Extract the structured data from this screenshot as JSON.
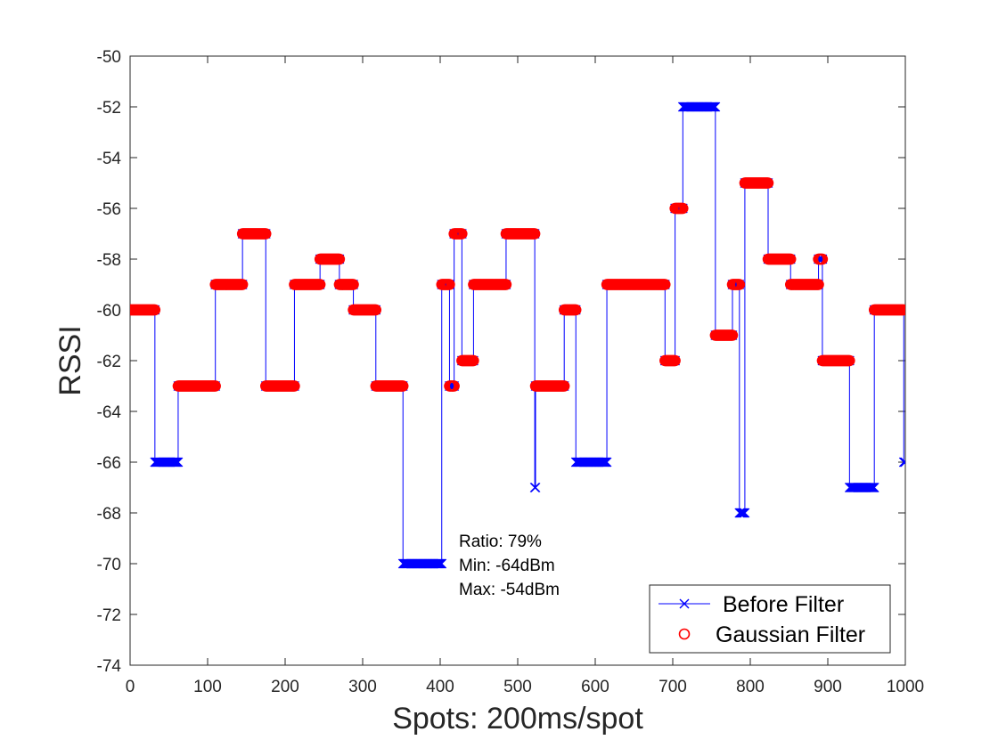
{
  "chart_data": {
    "type": "line",
    "title": "",
    "xlabel": "Spots: 200ms/spot",
    "ylabel": "RSSI",
    "xlim": [
      0,
      1000
    ],
    "ylim": [
      -74,
      -50
    ],
    "xticks": [
      0,
      100,
      200,
      300,
      400,
      500,
      600,
      700,
      800,
      900,
      1000
    ],
    "yticks": [
      -74,
      -72,
      -70,
      -68,
      -66,
      -64,
      -62,
      -60,
      -58,
      -56,
      -54,
      -52,
      -50
    ],
    "grid": false,
    "legend_location": "bottom-right",
    "annotations": [
      "Ratio: 79%",
      "Min: -64dBm",
      "Max: -54dBm"
    ],
    "series": [
      {
        "name": "Before Filter",
        "color": "#0000ff",
        "marker": "x",
        "segments": [
          {
            "x0": 0,
            "x1": 32,
            "y": -60
          },
          {
            "x0": 32,
            "x1": 62,
            "y": -66
          },
          {
            "x0": 62,
            "x1": 110,
            "y": -63
          },
          {
            "x0": 110,
            "x1": 145,
            "y": -59
          },
          {
            "x0": 145,
            "x1": 175,
            "y": -57
          },
          {
            "x0": 175,
            "x1": 212,
            "y": -63
          },
          {
            "x0": 212,
            "x1": 245,
            "y": -59
          },
          {
            "x0": 245,
            "x1": 270,
            "y": -58
          },
          {
            "x0": 270,
            "x1": 288,
            "y": -59
          },
          {
            "x0": 288,
            "x1": 317,
            "y": -60
          },
          {
            "x0": 317,
            "x1": 352,
            "y": -63
          },
          {
            "x0": 352,
            "x1": 402,
            "y": -70
          },
          {
            "x0": 402,
            "x1": 412,
            "y": -59
          },
          {
            "x0": 412,
            "x1": 418,
            "y": -63
          },
          {
            "x0": 418,
            "x1": 428,
            "y": -57
          },
          {
            "x0": 428,
            "x1": 443,
            "y": -62
          },
          {
            "x0": 443,
            "x1": 485,
            "y": -59
          },
          {
            "x0": 485,
            "x1": 522,
            "y": -57
          },
          {
            "x0": 522,
            "x1": 523,
            "y": -67
          },
          {
            "x0": 523,
            "x1": 560,
            "y": -63
          },
          {
            "x0": 560,
            "x1": 575,
            "y": -60
          },
          {
            "x0": 575,
            "x1": 615,
            "y": -66
          },
          {
            "x0": 615,
            "x1": 690,
            "y": -59
          },
          {
            "x0": 690,
            "x1": 703,
            "y": -62
          },
          {
            "x0": 703,
            "x1": 713,
            "y": -56
          },
          {
            "x0": 713,
            "x1": 755,
            "y": -52
          },
          {
            "x0": 755,
            "x1": 777,
            "y": -61
          },
          {
            "x0": 777,
            "x1": 786,
            "y": -59
          },
          {
            "x0": 786,
            "x1": 793,
            "y": -68
          },
          {
            "x0": 793,
            "x1": 823,
            "y": -55
          },
          {
            "x0": 823,
            "x1": 852,
            "y": -58
          },
          {
            "x0": 852,
            "x1": 888,
            "y": -59
          },
          {
            "x0": 888,
            "x1": 893,
            "y": -58
          },
          {
            "x0": 893,
            "x1": 928,
            "y": -62
          },
          {
            "x0": 928,
            "x1": 960,
            "y": -67
          },
          {
            "x0": 960,
            "x1": 998,
            "y": -60
          },
          {
            "x0": 998,
            "x1": 1000,
            "y": -66
          }
        ]
      },
      {
        "name": "Gaussian Filter",
        "color": "#ff0000",
        "marker": "o",
        "range_min": -64,
        "range_max": -54
      }
    ]
  }
}
